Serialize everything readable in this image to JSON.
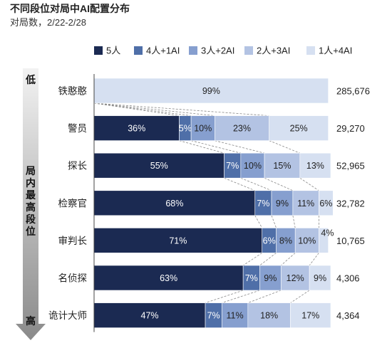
{
  "title": "不同段位对局中AI配置分布",
  "subtitle": "对局数，2/22-2/28",
  "axis_side": {
    "top_label": "低",
    "middle_label": "局内最高段位",
    "bottom_label": "高"
  },
  "colors": [
    "#1b2a52",
    "#4f6fa8",
    "#869fcf",
    "#b3c3e3",
    "#d6e0f1"
  ],
  "chart_data": {
    "type": "bar",
    "orientation": "horizontal",
    "stacked": "percent",
    "categories": [
      "铁憨憨",
      "警员",
      "探长",
      "检察官",
      "审判长",
      "名侦探",
      "诡计大师"
    ],
    "series": [
      {
        "name": "5人",
        "values": [
          0,
          36,
          55,
          68,
          71,
          63,
          47
        ]
      },
      {
        "name": "4人+1AI",
        "values": [
          0,
          5,
          7,
          7,
          6,
          7,
          7
        ]
      },
      {
        "name": "3人+2AI",
        "values": [
          0,
          10,
          10,
          9,
          8,
          9,
          11
        ]
      },
      {
        "name": "2人+3AI",
        "values": [
          0,
          23,
          15,
          11,
          10,
          12,
          18
        ]
      },
      {
        "name": "1人+4AI",
        "values": [
          99,
          25,
          13,
          6,
          4,
          9,
          17
        ]
      }
    ],
    "totals": [
      "285,676",
      "29,270",
      "52,965",
      "32,782",
      "10,765",
      "4,306",
      "4,364"
    ],
    "xlim": [
      0,
      100
    ],
    "legend_position": "top-right",
    "grid": false
  }
}
